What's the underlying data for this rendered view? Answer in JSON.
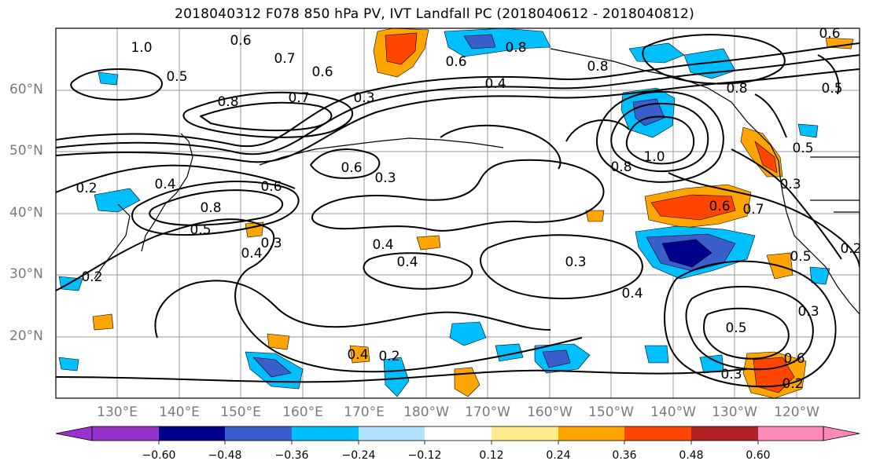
{
  "title": "2018040312 F078 850 hPa PV, IVT Landfall PC (2018040612 - 2018040812)",
  "lat_labels": [
    "60°N",
    "50°N",
    "40°N",
    "30°N",
    "20°N"
  ],
  "lon_labels": [
    "130°E",
    "140°E",
    "150°E",
    "160°E",
    "170°E",
    "180°W",
    "170°W",
    "160°W",
    "150°W",
    "140°W",
    "130°W",
    "120°W"
  ],
  "colorbar": {
    "ticks": [
      "−0.60",
      "−0.48",
      "−0.36",
      "−0.24",
      "−0.12",
      "0.12",
      "0.24",
      "0.36",
      "0.48",
      "0.60"
    ],
    "colors": [
      "#9932cc",
      "#00008b",
      "#3a5fcd",
      "#00bfff",
      "#b0e2ff",
      "#ffffff",
      "#ffec8b",
      "#ffa500",
      "#ff4500",
      "#b22222",
      "#ff88bb"
    ]
  },
  "contour_labels": [
    {
      "text": "1.0"
    },
    {
      "text": "0.6"
    },
    {
      "text": "0.7"
    },
    {
      "text": "0.6"
    },
    {
      "text": "0.5"
    },
    {
      "text": "0.8"
    },
    {
      "text": "0.7"
    },
    {
      "text": "0.3"
    },
    {
      "text": "0.4"
    },
    {
      "text": "0.8"
    },
    {
      "text": "0.6"
    },
    {
      "text": "0.2"
    },
    {
      "text": "0.4"
    },
    {
      "text": "0.6"
    },
    {
      "text": "0.8"
    },
    {
      "text": "0.5"
    },
    {
      "text": "0.3"
    },
    {
      "text": "0.4"
    },
    {
      "text": "0.2"
    },
    {
      "text": "0.6"
    },
    {
      "text": "0.3"
    },
    {
      "text": "0.4"
    },
    {
      "text": "0.4"
    },
    {
      "text": "0.3"
    },
    {
      "text": "0.4"
    },
    {
      "text": "1.0"
    },
    {
      "text": "0.8"
    },
    {
      "text": "0.8"
    },
    {
      "text": "0.6"
    },
    {
      "text": "0.7"
    },
    {
      "text": "0.5"
    },
    {
      "text": "0.3"
    },
    {
      "text": "0.5"
    },
    {
      "text": "0.3"
    },
    {
      "text": "0.6"
    },
    {
      "text": "0.3"
    },
    {
      "text": "0.2"
    },
    {
      "text": "0.4"
    },
    {
      "text": "0.2"
    },
    {
      "text": "0.5"
    },
    {
      "text": "0.6"
    },
    {
      "text": "0.5"
    },
    {
      "text": "0.2"
    },
    {
      "text": "0.8"
    }
  ]
}
